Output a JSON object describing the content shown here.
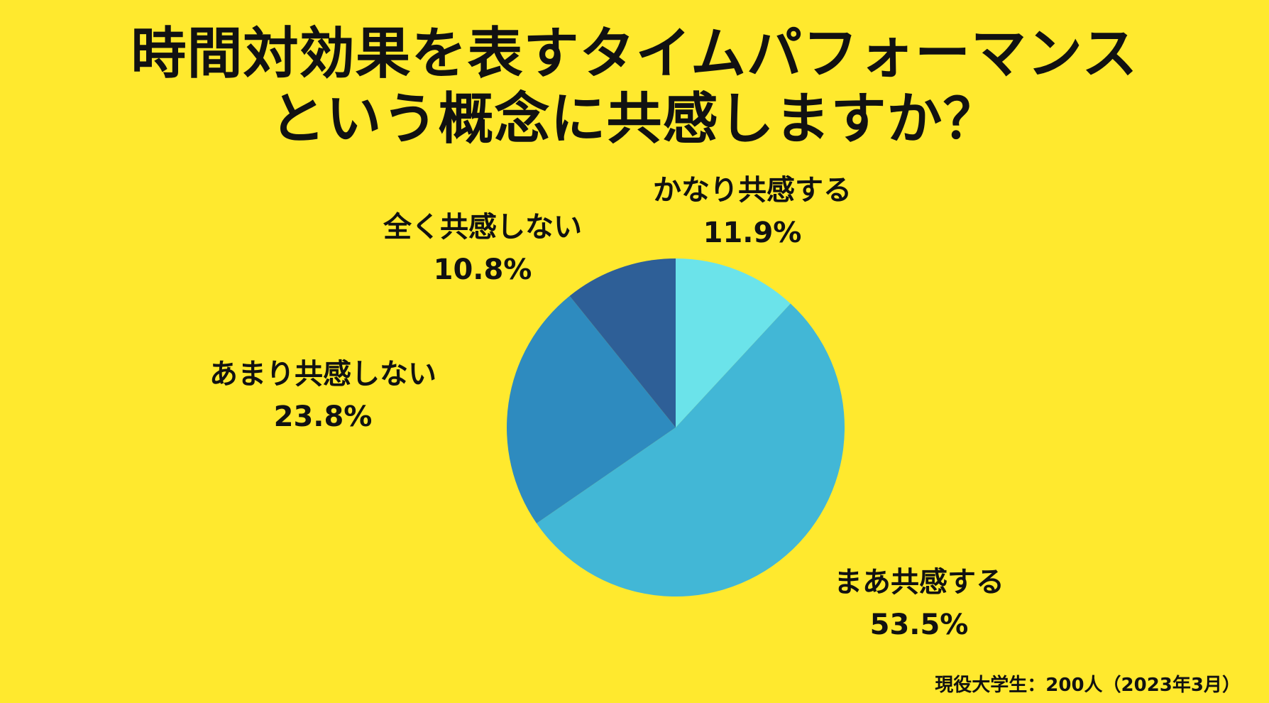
{
  "chart_data": {
    "type": "pie",
    "title_lines": [
      "時間対効果を表すタイムパフォーマンス",
      "という概念に共感しますか？"
    ],
    "slices": [
      {
        "label": "かなり共感する",
        "value": 11.9,
        "value_label": "11.9%",
        "color": "#6BE3EA"
      },
      {
        "label": "まあ共感する",
        "value": 53.5,
        "value_label": "53.5%",
        "color": "#42B7D6"
      },
      {
        "label": "あまり共感しない",
        "value": 23.8,
        "value_label": "23.8%",
        "color": "#2E8BBF"
      },
      {
        "label": "全く共感しない",
        "value": 10.8,
        "value_label": "10.8%",
        "color": "#2E5F97"
      }
    ],
    "start_angle": "12 o'clock, clockwise",
    "footnote": "現役大学生：200人（2023年3月）"
  },
  "background_color": "#FFE92E"
}
